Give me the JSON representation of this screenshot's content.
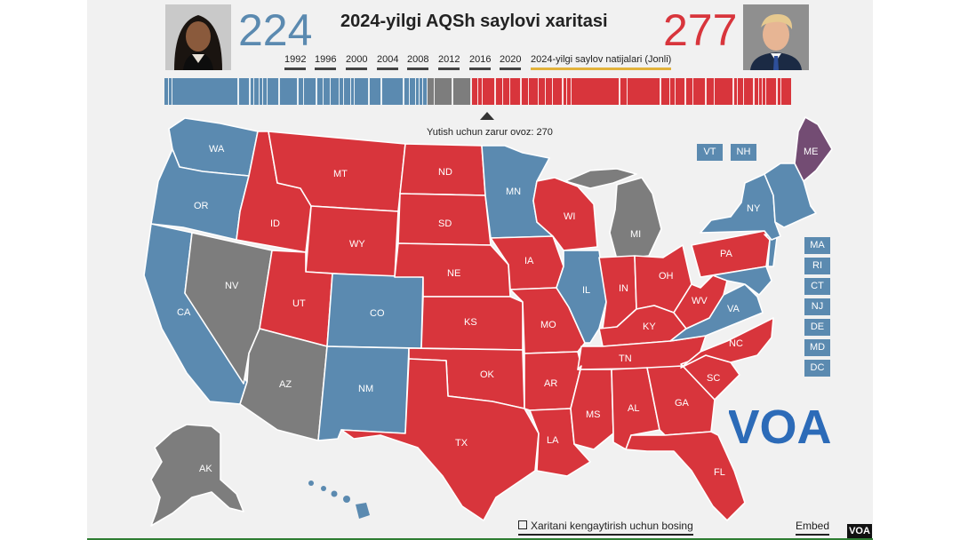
{
  "header": {
    "title": "2024-yilgi AQSh saylovi xaritasi",
    "left_count": "224",
    "right_count": "277",
    "years": [
      "1992",
      "1996",
      "2000",
      "2004",
      "2008",
      "2012",
      "2016",
      "2020"
    ],
    "live_label": "2024-yilgi saylov natijalari (Jonli)"
  },
  "threshold": {
    "label": "Yutish uchun zarur ovoz: 270",
    "value": 270,
    "total": 538
  },
  "colors": {
    "blue": "#5b8ab0",
    "red": "#d8353c",
    "gray": "#7d7d7d",
    "purple": "#734c73",
    "voa": "#2c6bb8"
  },
  "ev_bar": {
    "blue": 224,
    "gray": 37,
    "red": 277
  },
  "states": {
    "WA": "WA",
    "OR": "OR",
    "CA": "CA",
    "ID": "ID",
    "NV": "NV",
    "MT": "MT",
    "WY": "WY",
    "UT": "UT",
    "AZ": "AZ",
    "CO": "CO",
    "NM": "NM",
    "ND": "ND",
    "SD": "SD",
    "NE": "NE",
    "KS": "KS",
    "OK": "OK",
    "TX": "TX",
    "MN": "MN",
    "IA": "IA",
    "MO": "MO",
    "AR": "AR",
    "LA": "LA",
    "WI": "WI",
    "IL": "IL",
    "MI": "MI",
    "IN": "IN",
    "OH": "OH",
    "KY": "KY",
    "TN": "TN",
    "MS": "MS",
    "AL": "AL",
    "GA": "GA",
    "FL": "FL",
    "SC": "SC",
    "NC": "NC",
    "VA": "VA",
    "WV": "WV",
    "PA": "PA",
    "NY": "NY",
    "ME": "ME",
    "AK": "AK"
  },
  "small_states": [
    "VT",
    "NH",
    "MA",
    "RI",
    "CT",
    "NJ",
    "DE",
    "MD",
    "DC"
  ],
  "footer": {
    "expand_label": "Xaritani kengaytirish uchun bosing",
    "embed_label": "Embed",
    "badge": "VOA"
  },
  "logo": {
    "text": "VOA"
  }
}
